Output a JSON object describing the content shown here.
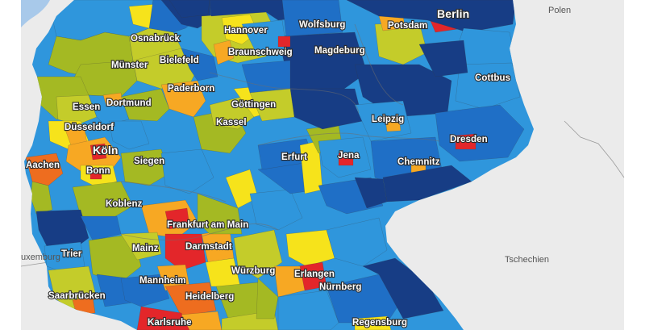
{
  "map": {
    "colors": {
      "background": "#ebebeb",
      "water": "#a8c9ea",
      "dark_blue": "#173d85",
      "blue": "#1f6fc6",
      "light_blue": "#2f96dc",
      "olive": "#a4b923",
      "yellow_green": "#c4cc2a",
      "yellow": "#f6e31b",
      "orange": "#f7a823",
      "dark_orange": "#ee6d1f",
      "red": "#e3262a"
    },
    "cities": [
      {
        "id": "berlin",
        "name": "Berlin",
        "size": "big"
      },
      {
        "id": "potsdam",
        "name": "Potsdam"
      },
      {
        "id": "hannover",
        "name": "Hannover"
      },
      {
        "id": "wolfsburg",
        "name": "Wolfsburg"
      },
      {
        "id": "osnabrueck",
        "name": "Osnabrück"
      },
      {
        "id": "braunschweig",
        "name": "Braunschweig"
      },
      {
        "id": "magdeburg",
        "name": "Magdeburg"
      },
      {
        "id": "muenster",
        "name": "Münster"
      },
      {
        "id": "bielefeld",
        "name": "Bielefeld"
      },
      {
        "id": "cottbus",
        "name": "Cottbus"
      },
      {
        "id": "paderborn",
        "name": "Paderborn"
      },
      {
        "id": "essen",
        "name": "Essen"
      },
      {
        "id": "dortmund",
        "name": "Dortmund"
      },
      {
        "id": "goettingen",
        "name": "Göttingen"
      },
      {
        "id": "duesseldorf",
        "name": "Düsseldorf"
      },
      {
        "id": "leipzig",
        "name": "Leipzig"
      },
      {
        "id": "kassel",
        "name": "Kassel"
      },
      {
        "id": "koeln",
        "name": "Köln",
        "size": "big"
      },
      {
        "id": "dresden",
        "name": "Dresden"
      },
      {
        "id": "erfurt",
        "name": "Erfurt"
      },
      {
        "id": "jena",
        "name": "Jena"
      },
      {
        "id": "aachen",
        "name": "Aachen"
      },
      {
        "id": "siegen",
        "name": "Siegen"
      },
      {
        "id": "chemnitz",
        "name": "Chemnitz"
      },
      {
        "id": "bonn",
        "name": "Bonn"
      },
      {
        "id": "koblenz",
        "name": "Koblenz"
      },
      {
        "id": "frankfurt",
        "name": "Frankfurt am Main"
      },
      {
        "id": "darmstadt",
        "name": "Darmstadt"
      },
      {
        "id": "mainz",
        "name": "Mainz"
      },
      {
        "id": "trier",
        "name": "Trier"
      },
      {
        "id": "wuerzburg",
        "name": "Würzburg"
      },
      {
        "id": "erlangen",
        "name": "Erlangen"
      },
      {
        "id": "mannheim",
        "name": "Mannheim"
      },
      {
        "id": "nuernberg",
        "name": "Nürnberg"
      },
      {
        "id": "heidelberg",
        "name": "Heidelberg"
      },
      {
        "id": "saarbruecken",
        "name": "Saarbrücken"
      },
      {
        "id": "karlsruhe",
        "name": "Karlsruhe"
      },
      {
        "id": "regensburg",
        "name": "Regensburg"
      }
    ],
    "countries": [
      {
        "id": "polen",
        "name": "Polen"
      },
      {
        "id": "tschechien",
        "name": "Tschechien"
      },
      {
        "id": "luxemburg",
        "name": "uxemburg"
      }
    ]
  }
}
